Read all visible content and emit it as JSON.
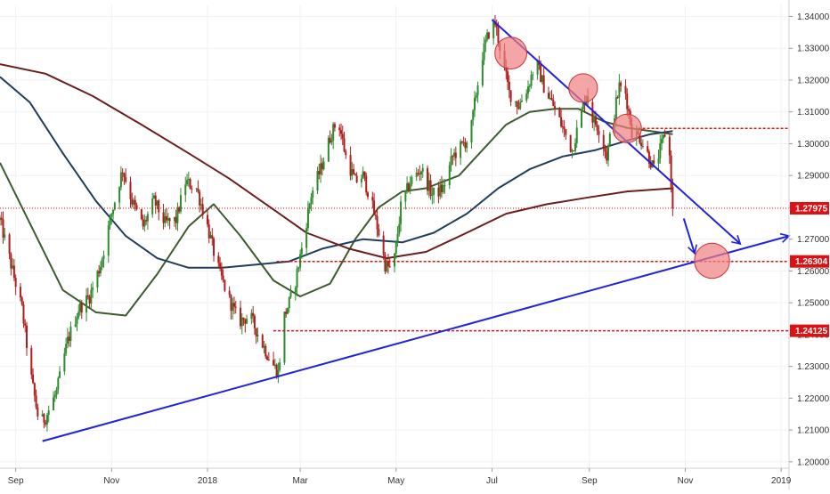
{
  "chart_data": {
    "type": "candlestick",
    "y_axis": {
      "position": "right",
      "range": [
        1.198,
        1.3435
      ],
      "ticks": [
        "1.34000",
        "1.33000",
        "1.32000",
        "1.31000",
        "1.30000",
        "1.29000",
        "1.28000",
        "1.27000",
        "1.26000",
        "1.25000",
        "1.24000",
        "1.23000",
        "1.22000",
        "1.21000",
        "1.20000"
      ],
      "tick_values": [
        1.34,
        1.33,
        1.32,
        1.31,
        1.3,
        1.29,
        1.28,
        1.27,
        1.26,
        1.25,
        1.24,
        1.23,
        1.22,
        1.21,
        1.2
      ]
    },
    "x_axis": {
      "range": [
        "2017-08-22",
        "2019-01-06"
      ],
      "ticks": [
        {
          "label": "Sep",
          "date": "2017-09-01"
        },
        {
          "label": "Nov",
          "date": "2017-11-01"
        },
        {
          "label": "2018",
          "date": "2018-01-01"
        },
        {
          "label": "Mar",
          "date": "2018-03-01"
        },
        {
          "label": "May",
          "date": "2018-05-01"
        },
        {
          "label": "Jul",
          "date": "2018-07-01"
        },
        {
          "label": "Sep",
          "date": "2018-09-01"
        },
        {
          "label": "Nov",
          "date": "2018-11-01"
        },
        {
          "label": "2019",
          "date": "2019-01-01"
        }
      ]
    },
    "price_path": [
      [
        "2017-08-22",
        1.276
      ],
      [
        "2017-08-29",
        1.262
      ],
      [
        "2017-09-05",
        1.248
      ],
      [
        "2017-09-11",
        1.226
      ],
      [
        "2017-09-16",
        1.212
      ],
      [
        "2017-09-20",
        1.214
      ],
      [
        "2017-09-27",
        1.222
      ],
      [
        "2017-10-04",
        1.238
      ],
      [
        "2017-10-11",
        1.248
      ],
      [
        "2017-10-18",
        1.252
      ],
      [
        "2017-10-25",
        1.262
      ],
      [
        "2017-11-01",
        1.278
      ],
      [
        "2017-11-05",
        1.286
      ],
      [
        "2017-11-08",
        1.292
      ],
      [
        "2017-11-14",
        1.282
      ],
      [
        "2017-11-21",
        1.274
      ],
      [
        "2017-11-28",
        1.282
      ],
      [
        "2017-12-05",
        1.275
      ],
      [
        "2017-12-12",
        1.276
      ],
      [
        "2017-12-18",
        1.288
      ],
      [
        "2017-12-25",
        1.286
      ],
      [
        "2017-12-31",
        1.276
      ],
      [
        "2018-01-07",
        1.262
      ],
      [
        "2018-01-14",
        1.252
      ],
      [
        "2018-01-21",
        1.244
      ],
      [
        "2018-01-28",
        1.246
      ],
      [
        "2018-02-04",
        1.238
      ],
      [
        "2018-02-10",
        1.232
      ],
      [
        "2018-02-15",
        1.228
      ],
      [
        "2018-02-19",
        1.246
      ],
      [
        "2018-02-25",
        1.254
      ],
      [
        "2018-03-03",
        1.27
      ],
      [
        "2018-03-08",
        1.284
      ],
      [
        "2018-03-14",
        1.292
      ],
      [
        "2018-03-20",
        1.302
      ],
      [
        "2018-03-25",
        1.308
      ],
      [
        "2018-03-30",
        1.296
      ],
      [
        "2018-04-05",
        1.288
      ],
      [
        "2018-04-10",
        1.29
      ],
      [
        "2018-04-15",
        1.282
      ],
      [
        "2018-04-20",
        1.272
      ],
      [
        "2018-04-24",
        1.262
      ],
      [
        "2018-04-29",
        1.26
      ],
      [
        "2018-05-04",
        1.28
      ],
      [
        "2018-05-10",
        1.288
      ],
      [
        "2018-05-17",
        1.292
      ],
      [
        "2018-05-24",
        1.284
      ],
      [
        "2018-05-31",
        1.286
      ],
      [
        "2018-06-06",
        1.296
      ],
      [
        "2018-06-13",
        1.3
      ],
      [
        "2018-06-17",
        1.302
      ],
      [
        "2018-06-21",
        1.316
      ],
      [
        "2018-06-25",
        1.328
      ],
      [
        "2018-06-29",
        1.335
      ],
      [
        "2018-07-03",
        1.338
      ],
      [
        "2018-07-07",
        1.328
      ],
      [
        "2018-07-12",
        1.316
      ],
      [
        "2018-07-18",
        1.312
      ],
      [
        "2018-07-24",
        1.318
      ],
      [
        "2018-07-29",
        1.326
      ],
      [
        "2018-08-03",
        1.318
      ],
      [
        "2018-08-09",
        1.312
      ],
      [
        "2018-08-15",
        1.305
      ],
      [
        "2018-08-21",
        1.298
      ],
      [
        "2018-08-26",
        1.308
      ],
      [
        "2018-08-30",
        1.316
      ],
      [
        "2018-09-03",
        1.308
      ],
      [
        "2018-09-08",
        1.304
      ],
      [
        "2018-09-12",
        1.296
      ],
      [
        "2018-09-17",
        1.31
      ],
      [
        "2018-09-20",
        1.318
      ],
      [
        "2018-09-24",
        1.316
      ],
      [
        "2018-09-28",
        1.304
      ],
      [
        "2018-10-03",
        1.302
      ],
      [
        "2018-10-07",
        1.298
      ],
      [
        "2018-10-12",
        1.292
      ],
      [
        "2018-10-16",
        1.298
      ],
      [
        "2018-10-20",
        1.305
      ],
      [
        "2018-10-22",
        1.296
      ],
      [
        "2018-10-24",
        1.28
      ]
    ],
    "moving_averages": [
      {
        "color": "#3e5a2e",
        "points": [
          [
            "2017-08-22",
            1.294
          ],
          [
            "2017-09-10",
            1.275
          ],
          [
            "2017-10-01",
            1.254
          ],
          [
            "2017-10-22",
            1.247
          ],
          [
            "2017-11-10",
            1.246
          ],
          [
            "2017-11-30",
            1.259
          ],
          [
            "2017-12-20",
            1.274
          ],
          [
            "2018-01-05",
            1.281
          ],
          [
            "2018-01-22",
            1.271
          ],
          [
            "2018-02-12",
            1.257
          ],
          [
            "2018-03-01",
            1.252
          ],
          [
            "2018-03-20",
            1.256
          ],
          [
            "2018-04-05",
            1.27
          ],
          [
            "2018-04-20",
            1.28
          ],
          [
            "2018-05-05",
            1.285
          ],
          [
            "2018-05-20",
            1.286
          ],
          [
            "2018-06-10",
            1.29
          ],
          [
            "2018-06-25",
            1.298
          ],
          [
            "2018-07-10",
            1.306
          ],
          [
            "2018-07-25",
            1.31
          ],
          [
            "2018-08-10",
            1.311
          ],
          [
            "2018-08-25",
            1.311
          ],
          [
            "2018-09-10",
            1.307
          ],
          [
            "2018-09-25",
            1.305
          ],
          [
            "2018-10-10",
            1.304
          ],
          [
            "2018-10-24",
            1.303
          ]
        ]
      },
      {
        "color": "#1f3d5c",
        "points": [
          [
            "2017-08-22",
            1.321
          ],
          [
            "2017-09-10",
            1.313
          ],
          [
            "2017-10-01",
            1.297
          ],
          [
            "2017-10-22",
            1.282
          ],
          [
            "2017-11-10",
            1.271
          ],
          [
            "2017-11-30",
            1.264
          ],
          [
            "2017-12-20",
            1.261
          ],
          [
            "2018-01-10",
            1.261
          ],
          [
            "2018-02-01",
            1.262
          ],
          [
            "2018-02-22",
            1.263
          ],
          [
            "2018-03-15",
            1.267
          ],
          [
            "2018-04-10",
            1.27
          ],
          [
            "2018-05-05",
            1.269
          ],
          [
            "2018-05-25",
            1.272
          ],
          [
            "2018-06-15",
            1.278
          ],
          [
            "2018-07-05",
            1.286
          ],
          [
            "2018-07-25",
            1.292
          ],
          [
            "2018-08-15",
            1.296
          ],
          [
            "2018-09-05",
            1.298
          ],
          [
            "2018-09-25",
            1.301
          ],
          [
            "2018-10-10",
            1.303
          ],
          [
            "2018-10-24",
            1.304
          ]
        ]
      },
      {
        "color": "#6b1e1e",
        "points": [
          [
            "2017-08-22",
            1.325
          ],
          [
            "2017-09-20",
            1.322
          ],
          [
            "2017-10-20",
            1.315
          ],
          [
            "2017-11-20",
            1.306
          ],
          [
            "2017-12-20",
            1.297
          ],
          [
            "2018-01-15",
            1.289
          ],
          [
            "2018-02-10",
            1.28
          ],
          [
            "2018-03-05",
            1.272
          ],
          [
            "2018-04-01",
            1.267
          ],
          [
            "2018-04-25",
            1.264
          ],
          [
            "2018-05-20",
            1.266
          ],
          [
            "2018-06-15",
            1.272
          ],
          [
            "2018-07-10",
            1.278
          ],
          [
            "2018-08-05",
            1.281
          ],
          [
            "2018-08-30",
            1.283
          ],
          [
            "2018-09-25",
            1.285
          ],
          [
            "2018-10-24",
            1.286
          ]
        ]
      }
    ],
    "trendlines": [
      {
        "name": "rising-support",
        "color": "#2222dd",
        "from": [
          "2017-09-18",
          1.2065
        ],
        "to": [
          "2019-01-06",
          1.271
        ],
        "arrow": true
      },
      {
        "name": "falling-resistance",
        "color": "#2222dd",
        "from": [
          "2018-07-01",
          1.339
        ],
        "to": [
          "2018-12-06",
          1.2685
        ],
        "arrow": true
      },
      {
        "name": "projection",
        "color": "#2222dd",
        "from": [
          "2018-10-31",
          1.2765
        ],
        "to": [
          "2018-11-07",
          1.2655
        ],
        "arrow": true
      }
    ],
    "horizontal_levels": [
      {
        "value": 1.2797,
        "from": "2017-08-22",
        "color": "#dd1111",
        "style": "dotted"
      },
      {
        "value": 1.263,
        "from": "2018-02-14",
        "color": "#dd1111",
        "style": "dashed"
      },
      {
        "value": 1.2412,
        "from": "2018-02-12",
        "color": "#dd1111",
        "style": "dashed"
      },
      {
        "value": 1.3048,
        "from": "2018-10-02",
        "color": "#dd1111",
        "style": "dashed"
      }
    ],
    "price_tags": [
      {
        "label": "1.27975",
        "value": 1.2797,
        "color": "#dd1111"
      },
      {
        "label": "1.26304",
        "value": 1.263,
        "color": "#dd1111"
      },
      {
        "label": "1.24125",
        "value": 1.2412,
        "color": "#dd1111"
      }
    ],
    "highlight_circles": [
      {
        "date": "2018-07-13",
        "value": 1.3285,
        "r": 0.005
      },
      {
        "date": "2018-08-28",
        "value": 1.3175,
        "r": 0.0045
      },
      {
        "date": "2018-09-25",
        "value": 1.3048,
        "r": 0.0045
      },
      {
        "date": "2018-11-18",
        "value": 1.2632,
        "r": 0.0055
      }
    ],
    "colors": {
      "up_candle": "#2e8b2e",
      "down_candle": "#b01c1c",
      "highlight_fill": "#f08080",
      "highlight_stroke": "#d03030"
    }
  }
}
